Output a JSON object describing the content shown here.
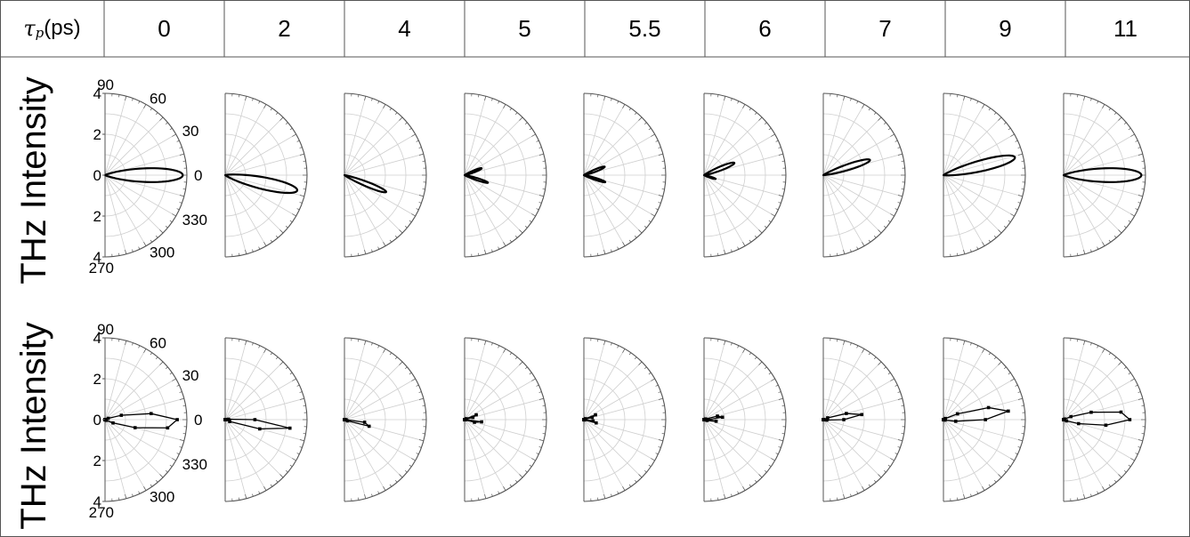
{
  "header": {
    "symbol": "τ",
    "symbol_sub": "p",
    "unit": " (ps)",
    "columns": [
      "0",
      "2",
      "4",
      "5",
      "5.5",
      "6",
      "7",
      "9",
      "11"
    ]
  },
  "rows": [
    {
      "ylabel": "THz Intensity",
      "style": "line"
    },
    {
      "ylabel": "THz Intensity",
      "style": "points"
    }
  ],
  "chart_data": {
    "type": "polar",
    "angle_unit": "degrees",
    "angle_range": [
      270,
      90
    ],
    "angle_ticks": [
      "90",
      "60",
      "30",
      "0",
      "330",
      "300",
      "270"
    ],
    "radial_ticks": [
      "4",
      "2",
      "0",
      "2",
      "4"
    ],
    "radial_range": [
      0,
      4
    ],
    "grid": true,
    "series": [
      {
        "row": 0,
        "tau": "0",
        "lobes": [
          {
            "dir": 0,
            "peak": 3.8,
            "width": 12
          }
        ]
      },
      {
        "row": 0,
        "tau": "2",
        "lobes": [
          {
            "dir": -12,
            "peak": 3.6,
            "width": 11
          }
        ]
      },
      {
        "row": 0,
        "tau": "4",
        "lobes": [
          {
            "dir": -22,
            "peak": 2.2,
            "width": 7
          }
        ]
      },
      {
        "row": 0,
        "tau": "5",
        "lobes": [
          {
            "dir": 22,
            "peak": 0.9,
            "width": 7
          },
          {
            "dir": -18,
            "peak": 1.2,
            "width": 6
          }
        ]
      },
      {
        "row": 0,
        "tau": "5.5",
        "lobes": [
          {
            "dir": 22,
            "peak": 1.1,
            "width": 7
          },
          {
            "dir": -18,
            "peak": 1.1,
            "width": 6
          }
        ]
      },
      {
        "row": 0,
        "tau": "6",
        "lobes": [
          {
            "dir": 22,
            "peak": 1.6,
            "width": 8
          },
          {
            "dir": -18,
            "peak": 0.6,
            "width": 6
          }
        ]
      },
      {
        "row": 0,
        "tau": "7",
        "lobes": [
          {
            "dir": 18,
            "peak": 2.4,
            "width": 8
          }
        ]
      },
      {
        "row": 0,
        "tau": "9",
        "lobes": [
          {
            "dir": 14,
            "peak": 3.6,
            "width": 10
          }
        ]
      },
      {
        "row": 0,
        "tau": "11",
        "lobes": [
          {
            "dir": 0,
            "peak": 3.8,
            "width": 12
          }
        ]
      },
      {
        "row": 1,
        "tau": "0",
        "lobes": [
          {
            "dir": -2,
            "peak": 3.6,
            "width": 14
          }
        ]
      },
      {
        "row": 1,
        "tau": "2",
        "lobes": [
          {
            "dir": -8,
            "peak": 3.2,
            "width": 9
          }
        ]
      },
      {
        "row": 1,
        "tau": "4",
        "lobes": [
          {
            "dir": -12,
            "peak": 1.5,
            "width": 7
          }
        ]
      },
      {
        "row": 1,
        "tau": "5",
        "lobes": [
          {
            "dir": 20,
            "peak": 0.7,
            "width": 7
          },
          {
            "dir": -10,
            "peak": 1.0,
            "width": 6
          }
        ]
      },
      {
        "row": 1,
        "tau": "5.5",
        "lobes": [
          {
            "dir": 20,
            "peak": 0.7,
            "width": 7
          },
          {
            "dir": -12,
            "peak": 0.8,
            "width": 6
          }
        ]
      },
      {
        "row": 1,
        "tau": "6",
        "lobes": [
          {
            "dir": 10,
            "peak": 1.0,
            "width": 8
          },
          {
            "dir": -8,
            "peak": 0.6,
            "width": 6
          }
        ]
      },
      {
        "row": 1,
        "tau": "7",
        "lobes": [
          {
            "dir": 8,
            "peak": 1.9,
            "width": 10
          }
        ]
      },
      {
        "row": 1,
        "tau": "9",
        "lobes": [
          {
            "dir": 8,
            "peak": 3.2,
            "width": 12
          }
        ]
      },
      {
        "row": 1,
        "tau": "11",
        "lobes": [
          {
            "dir": 2,
            "peak": 3.3,
            "width": 14
          }
        ]
      }
    ]
  }
}
